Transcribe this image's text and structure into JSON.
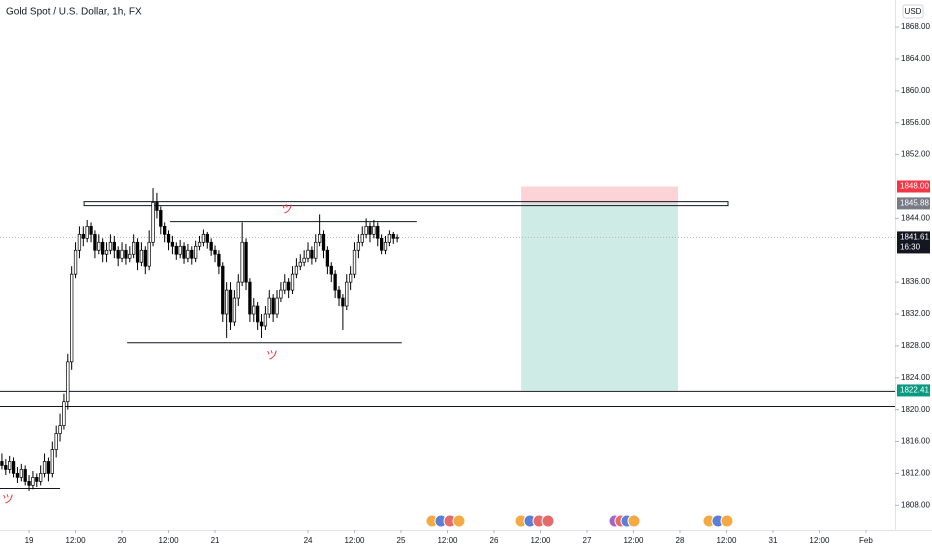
{
  "chart_data": {
    "type": "candlestick",
    "title": "Gold Spot / U.S. Dollar, 1h, FX",
    "currency": "USD",
    "countdown": "16:30",
    "x": [
      -7,
      -6,
      -5,
      -4,
      -3,
      -2,
      -1,
      0,
      1,
      2,
      3,
      4,
      5,
      6,
      7,
      8,
      9,
      10,
      11,
      12,
      13,
      14,
      15,
      16,
      17,
      18,
      19,
      20,
      21,
      22,
      23,
      24,
      25,
      26,
      27,
      28,
      29,
      30,
      31,
      32,
      33,
      34,
      35,
      36,
      37,
      38,
      39,
      40,
      41,
      42,
      43,
      44,
      45,
      46,
      47,
      48,
      49,
      50,
      51,
      52,
      53,
      54,
      55,
      56,
      57,
      58,
      59,
      60,
      61,
      62,
      63,
      64,
      65,
      66,
      67,
      68,
      69,
      70,
      71,
      72,
      73,
      74,
      75,
      76,
      77,
      78,
      79,
      80,
      81,
      82,
      83,
      84,
      85,
      86,
      87,
      88,
      89,
      90,
      91,
      92,
      93,
      94,
      95
    ],
    "open": [
      1813.5,
      1813,
      1812.5,
      1813.5,
      1812,
      1811.5,
      1812.5,
      1811,
      1810.5,
      1811.5,
      1811,
      1812,
      1813.5,
      1812,
      1815,
      1817,
      1818,
      1821,
      1826,
      1837,
      1840,
      1842,
      1841.5,
      1843,
      1842,
      1840,
      1841,
      1839.5,
      1840,
      1841,
      1840,
      1839,
      1840,
      1839,
      1839.5,
      1841,
      1838.5,
      1840,
      1838,
      1841,
      1846,
      1845,
      1843,
      1842,
      1841,
      1840.5,
      1839.5,
      1840.5,
      1839,
      1840,
      1839,
      1840.5,
      1841,
      1842,
      1841,
      1840,
      1839.5,
      1838,
      1832,
      1835,
      1831,
      1834,
      1836,
      1841,
      1836,
      1832,
      1833,
      1831,
      1830.5,
      1832,
      1834,
      1832,
      1834,
      1835,
      1836,
      1835,
      1837,
      1838,
      1838.5,
      1839,
      1840,
      1839,
      1841,
      1842,
      1840,
      1838,
      1837,
      1835,
      1834,
      1833,
      1836,
      1837,
      1840,
      1841,
      1842,
      1843,
      1842,
      1843,
      1841.5,
      1840,
      1841,
      1842,
      1841.5
    ],
    "high": [
      1814.5,
      1813.8,
      1814.2,
      1814,
      1812.8,
      1813.2,
      1813,
      1811.8,
      1812.3,
      1812,
      1813,
      1814.5,
      1814,
      1816,
      1818,
      1819.5,
      1822,
      1827,
      1838,
      1841,
      1843,
      1843,
      1843.8,
      1843.5,
      1842.5,
      1842,
      1841.5,
      1841,
      1842,
      1841.8,
      1840.5,
      1841,
      1840.8,
      1840.5,
      1842,
      1841.5,
      1841,
      1840.5,
      1842.5,
      1847.8,
      1847.2,
      1845.5,
      1843.5,
      1842.5,
      1841.8,
      1841,
      1841.3,
      1841,
      1840.8,
      1840.5,
      1841.2,
      1841.8,
      1842.6,
      1842.3,
      1841.5,
      1840.6,
      1840,
      1838.5,
      1836,
      1836,
      1835,
      1837,
      1843.5,
      1841.5,
      1836.5,
      1834,
      1833.5,
      1832,
      1833,
      1835,
      1834.5,
      1835,
      1836,
      1837,
      1836.5,
      1838,
      1839,
      1839.5,
      1840,
      1841,
      1840.5,
      1842,
      1844.5,
      1842.5,
      1840.5,
      1838.5,
      1837.5,
      1835.5,
      1834.5,
      1837,
      1838,
      1841,
      1842,
      1843,
      1844,
      1843.5,
      1843.8,
      1843.5,
      1842,
      1841.8,
      1842.5,
      1842.3,
      1842
    ],
    "low": [
      1812.5,
      1811.8,
      1812,
      1811.5,
      1810.8,
      1811,
      1810.5,
      1809.8,
      1810,
      1810.3,
      1810.5,
      1811.5,
      1811,
      1811.5,
      1814,
      1816,
      1817.5,
      1820,
      1825,
      1836.5,
      1839,
      1840.5,
      1841,
      1841,
      1839,
      1839.5,
      1838.5,
      1838.5,
      1839.5,
      1839,
      1838,
      1838.5,
      1838.2,
      1838.5,
      1839,
      1837.5,
      1838,
      1837,
      1837.5,
      1840.5,
      1844,
      1842,
      1841,
      1840,
      1839.5,
      1838.8,
      1839,
      1838.3,
      1838.5,
      1838.2,
      1838.5,
      1840,
      1840.5,
      1840.2,
      1839.3,
      1838.5,
      1837,
      1831,
      1829,
      1830,
      1830.5,
      1833,
      1835.5,
      1835,
      1831,
      1831,
      1830,
      1829,
      1830,
      1831.5,
      1831,
      1831.5,
      1833.5,
      1834.5,
      1834,
      1834.5,
      1836.5,
      1837.5,
      1838,
      1838.5,
      1838.2,
      1838.5,
      1840.5,
      1839,
      1837,
      1836,
      1834,
      1833,
      1830,
      1832.5,
      1835,
      1836.5,
      1839,
      1840.5,
      1841.5,
      1841,
      1841.5,
      1840.5,
      1839.5,
      1839.5,
      1840.5,
      1840.8,
      1841
    ],
    "close": [
      1813,
      1812.5,
      1813.5,
      1812,
      1811.5,
      1812.5,
      1811,
      1810.5,
      1811.5,
      1811,
      1812,
      1813.5,
      1812,
      1815,
      1817,
      1818,
      1821,
      1826,
      1837,
      1840,
      1842,
      1841.5,
      1843,
      1842,
      1840,
      1841,
      1839.5,
      1840,
      1841,
      1840,
      1839,
      1840,
      1839,
      1839.5,
      1841,
      1838.5,
      1840,
      1838,
      1841,
      1846,
      1845,
      1843,
      1842,
      1841,
      1840.5,
      1839.5,
      1840.5,
      1839,
      1840,
      1839,
      1840.5,
      1841,
      1842,
      1841,
      1840,
      1839.5,
      1838,
      1832,
      1835,
      1831,
      1834,
      1836,
      1841,
      1836,
      1832,
      1833,
      1831,
      1830.5,
      1832,
      1834,
      1832,
      1834,
      1835,
      1836,
      1835,
      1837,
      1838,
      1838.5,
      1839,
      1840,
      1839,
      1841,
      1842,
      1840,
      1838,
      1837,
      1835,
      1834,
      1833,
      1836,
      1837,
      1840,
      1841,
      1842,
      1843,
      1842,
      1843,
      1841.5,
      1840,
      1841,
      1842,
      1841.5,
      1841.61
    ],
    "up_color": "#ffffff",
    "down_color": "#000000",
    "xlim": [
      -7.5,
      223.5
    ],
    "xticks": [
      {
        "value": 0,
        "label": "19"
      },
      {
        "value": 12,
        "label": "12:00"
      },
      {
        "value": 24,
        "label": "20"
      },
      {
        "value": 36,
        "label": "12:00"
      },
      {
        "value": 48,
        "label": "21"
      },
      {
        "value": 72,
        "label": "24"
      },
      {
        "value": 84,
        "label": "12:00"
      },
      {
        "value": 96,
        "label": "25"
      },
      {
        "value": 108,
        "label": "12:00"
      },
      {
        "value": 120,
        "label": "26"
      },
      {
        "value": 132,
        "label": "12:00"
      },
      {
        "value": 144,
        "label": "27"
      },
      {
        "value": 156,
        "label": "12:00"
      },
      {
        "value": 168,
        "label": "28"
      },
      {
        "value": 180,
        "label": "12:00"
      },
      {
        "value": 192,
        "label": "31"
      },
      {
        "value": 204,
        "label": "12:00"
      },
      {
        "value": 216,
        "label": "Feb"
      }
    ],
    "ylim": [
      1804.9,
      1871.4
    ],
    "yticks": [
      {
        "value": 1808,
        "label": "1808.00"
      },
      {
        "value": 1812,
        "label": "1812.00"
      },
      {
        "value": 1816,
        "label": "1816.00"
      },
      {
        "value": 1820,
        "label": "1820.00"
      },
      {
        "value": 1824,
        "label": "1824.00"
      },
      {
        "value": 1828,
        "label": "1828.00"
      },
      {
        "value": 1832,
        "label": "1832.00"
      },
      {
        "value": 1836,
        "label": "1836.00"
      },
      {
        "value": 1844,
        "label": "1844.00"
      },
      {
        "value": 1852,
        "label": "1852.00"
      },
      {
        "value": 1856,
        "label": "1856.00"
      },
      {
        "value": 1860,
        "label": "1860.00"
      },
      {
        "value": 1864,
        "label": "1864.00"
      },
      {
        "value": 1868,
        "label": "1868.00"
      }
    ],
    "box": {
      "prices": [
        1845.6,
        1846.1
      ],
      "x": [
        14.2,
        180.4
      ]
    },
    "lines": [
      {
        "price": 1843.6,
        "x": [
          36.4,
          100.1
        ]
      },
      {
        "price": 1828.4,
        "x": [
          25.3,
          96.2
        ]
      },
      {
        "price": 1810.1,
        "x": [
          -7.5,
          8
        ]
      },
      {
        "price": 1822.3,
        "x": [
          -7.5,
          223.5
        ]
      },
      {
        "price": 1820.4,
        "x": [
          -7.5,
          223.5
        ]
      }
    ],
    "position": {
      "x": [
        127,
        167.5
      ],
      "stop": {
        "value": 1848,
        "label": "1848.00",
        "color": "#f23645"
      },
      "entry": {
        "value": 1845.88,
        "label": "1845.88",
        "color": "#787b86"
      },
      "target": {
        "value": 1822.41,
        "label": "1822.41",
        "color": "#089981"
      }
    },
    "annotations": [
      "ツ",
      "ツ",
      "ツ"
    ]
  }
}
